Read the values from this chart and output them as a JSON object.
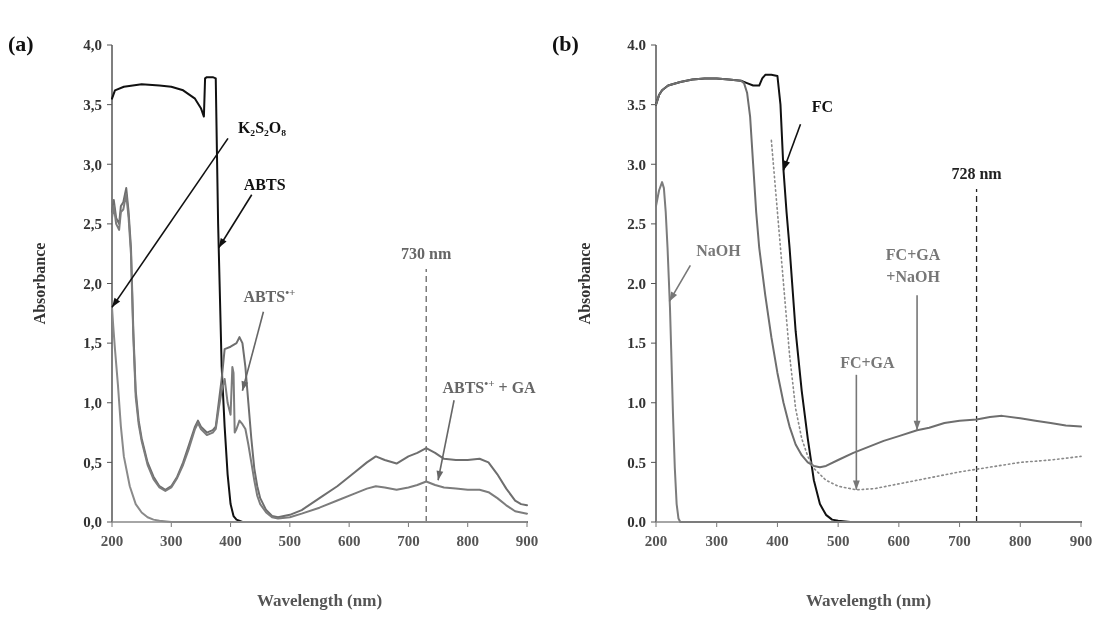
{
  "chart_data": [
    {
      "type": "line",
      "title": "(a)",
      "xlabel": "Wavelength (nm)",
      "ylabel": "Absorbance",
      "xlim": [
        200,
        900
      ],
      "xticks": [
        200,
        300,
        400,
        500,
        600,
        700,
        800,
        900
      ],
      "ylim": [
        0,
        4
      ],
      "yticks": [
        {
          "value": 0,
          "label": "0,0"
        },
        {
          "value": 0.5,
          "label": "0,5"
        },
        {
          "value": 1,
          "label": "1,0"
        },
        {
          "value": 1.5,
          "label": "1,5"
        },
        {
          "value": 2,
          "label": "2,0"
        },
        {
          "value": 2.5,
          "label": "2,5"
        },
        {
          "value": 3,
          "label": "3,0"
        },
        {
          "value": 3.5,
          "label": "3,5"
        },
        {
          "value": 4,
          "label": "4,0"
        }
      ],
      "series": [
        {
          "color": "#111111",
          "x": [
            200,
            205,
            220,
            250,
            280,
            300,
            320,
            340,
            350,
            355,
            357,
            360,
            370,
            375,
            377,
            379,
            380,
            385,
            390,
            395,
            400,
            405,
            410,
            420,
            500,
            900
          ],
          "values": [
            3.55,
            3.62,
            3.65,
            3.67,
            3.66,
            3.65,
            3.62,
            3.55,
            3.47,
            3.4,
            3.72,
            3.73,
            3.73,
            3.72,
            3.1,
            2.5,
            2.3,
            1.3,
            0.8,
            0.4,
            0.15,
            0.05,
            0.02,
            0,
            0,
            0
          ]
        },
        {
          "color": "#8a8a8a",
          "x": [
            200,
            202,
            205,
            210,
            215,
            220,
            230,
            240,
            250,
            260,
            270,
            280,
            300,
            400,
            500,
            900
          ],
          "values": [
            1.8,
            1.65,
            1.45,
            1.15,
            0.8,
            0.55,
            0.3,
            0.15,
            0.08,
            0.04,
            0.02,
            0.01,
            0,
            0,
            0,
            0
          ]
        },
        {
          "color": "#6e6e6e",
          "x": [
            200,
            203,
            207,
            212,
            215,
            219,
            224,
            228,
            232,
            236,
            240,
            245,
            250,
            260,
            270,
            280,
            290,
            300,
            310,
            320,
            330,
            340,
            345,
            350,
            360,
            370,
            375,
            380,
            385,
            390,
            400,
            410,
            415,
            420,
            425,
            430,
            435,
            440,
            445,
            450,
            460,
            470,
            480,
            500,
            520,
            550,
            580,
            610,
            630,
            645,
            660,
            680,
            700,
            715,
            730,
            745,
            760,
            780,
            800,
            820,
            835,
            850,
            865,
            880,
            890,
            900
          ],
          "values": [
            2.6,
            2.7,
            2.55,
            2.5,
            2.65,
            2.68,
            2.8,
            2.6,
            2.3,
            1.6,
            1.1,
            0.85,
            0.7,
            0.5,
            0.38,
            0.3,
            0.27,
            0.3,
            0.38,
            0.5,
            0.65,
            0.8,
            0.85,
            0.8,
            0.75,
            0.77,
            0.8,
            1.0,
            1.2,
            1.45,
            1.47,
            1.5,
            1.55,
            1.5,
            1.3,
            1.0,
            0.7,
            0.45,
            0.3,
            0.2,
            0.1,
            0.05,
            0.04,
            0.06,
            0.1,
            0.2,
            0.3,
            0.42,
            0.5,
            0.55,
            0.52,
            0.49,
            0.55,
            0.58,
            0.62,
            0.58,
            0.53,
            0.52,
            0.52,
            0.53,
            0.5,
            0.4,
            0.28,
            0.18,
            0.15,
            0.14
          ]
        },
        {
          "color": "#7c7c7c",
          "x": [
            200,
            203,
            207,
            212,
            215,
            219,
            224,
            228,
            232,
            236,
            240,
            245,
            250,
            260,
            270,
            280,
            290,
            300,
            310,
            320,
            330,
            340,
            345,
            350,
            360,
            370,
            375,
            380,
            385,
            390,
            395,
            400,
            403,
            405,
            407,
            410,
            415,
            420,
            425,
            430,
            435,
            440,
            445,
            450,
            460,
            470,
            480,
            500,
            520,
            550,
            580,
            610,
            630,
            645,
            660,
            680,
            700,
            715,
            730,
            745,
            760,
            780,
            800,
            820,
            835,
            850,
            865,
            880,
            890,
            900
          ],
          "values": [
            2.55,
            2.65,
            2.5,
            2.45,
            2.6,
            2.62,
            2.75,
            2.55,
            2.25,
            1.55,
            1.05,
            0.82,
            0.68,
            0.48,
            0.36,
            0.29,
            0.26,
            0.29,
            0.37,
            0.48,
            0.62,
            0.78,
            0.83,
            0.78,
            0.73,
            0.75,
            0.78,
            0.95,
            1.1,
            1.2,
            1.0,
            0.9,
            1.3,
            1.25,
            0.75,
            0.78,
            0.85,
            0.82,
            0.78,
            0.65,
            0.5,
            0.35,
            0.22,
            0.15,
            0.08,
            0.04,
            0.03,
            0.04,
            0.07,
            0.12,
            0.18,
            0.24,
            0.28,
            0.3,
            0.29,
            0.27,
            0.29,
            0.31,
            0.34,
            0.31,
            0.29,
            0.28,
            0.27,
            0.27,
            0.25,
            0.2,
            0.14,
            0.09,
            0.08,
            0.07
          ]
        }
      ],
      "ref_lines": [
        {
          "axis": "x",
          "value": 730,
          "label": "730 nm",
          "color": "#666666",
          "line_style": "dashed"
        }
      ],
      "annotations": [
        {
          "text": "K₂S₂O₈",
          "x": 200,
          "y": 1.8
        },
        {
          "text": "ABTS",
          "x": 380,
          "y": 2.3
        },
        {
          "text": "ABTS$^{•+}$",
          "x": 420,
          "y": 1.1
        },
        {
          "text": "ABTS$^{•+}$ + GA",
          "x": 750,
          "y": 0.35
        }
      ]
    },
    {
      "type": "line",
      "title": "(b)",
      "xlabel": "Wavelength (nm)",
      "ylabel": "Absorbance",
      "xlim": [
        200,
        900
      ],
      "xticks": [
        200,
        300,
        400,
        500,
        600,
        700,
        800,
        900
      ],
      "ylim": [
        0,
        4
      ],
      "yticks": [
        {
          "value": 0,
          "label": "0.0"
        },
        {
          "value": 0.5,
          "label": "0.5"
        },
        {
          "value": 1,
          "label": "1.0"
        },
        {
          "value": 1.5,
          "label": "1.5"
        },
        {
          "value": 2,
          "label": "2.0"
        },
        {
          "value": 2.5,
          "label": "2.5"
        },
        {
          "value": 3,
          "label": "3.0"
        },
        {
          "value": 3.5,
          "label": "3.5"
        },
        {
          "value": 4,
          "label": "4.0"
        }
      ],
      "series": [
        {
          "color": "#111111",
          "x": [
            200,
            205,
            210,
            220,
            240,
            260,
            280,
            300,
            320,
            340,
            350,
            360,
            370,
            375,
            380,
            390,
            400,
            405,
            410,
            415,
            420,
            430,
            440,
            450,
            460,
            470,
            480,
            490,
            500,
            520,
            600,
            700,
            800,
            900
          ],
          "values": [
            3.5,
            3.58,
            3.62,
            3.66,
            3.69,
            3.71,
            3.72,
            3.72,
            3.71,
            3.7,
            3.68,
            3.66,
            3.66,
            3.72,
            3.75,
            3.75,
            3.74,
            3.5,
            2.95,
            2.6,
            2.3,
            1.6,
            1.1,
            0.7,
            0.35,
            0.15,
            0.06,
            0.02,
            0.01,
            0,
            0,
            0,
            0,
            0
          ]
        },
        {
          "color": "#6e6e6e",
          "x": [
            200,
            205,
            210,
            220,
            240,
            260,
            280,
            300,
            320,
            340,
            345,
            350,
            355,
            360,
            365,
            370,
            380,
            390,
            400,
            410,
            420,
            430,
            440,
            450,
            460,
            470,
            480,
            500,
            525,
            550,
            575,
            600,
            630,
            650,
            675,
            700,
            728,
            750,
            770,
            800,
            825,
            850,
            875,
            900
          ],
          "values": [
            3.5,
            3.58,
            3.62,
            3.66,
            3.69,
            3.71,
            3.72,
            3.72,
            3.71,
            3.7,
            3.68,
            3.6,
            3.4,
            3.0,
            2.6,
            2.3,
            1.9,
            1.55,
            1.25,
            1.0,
            0.8,
            0.65,
            0.56,
            0.5,
            0.47,
            0.46,
            0.47,
            0.52,
            0.58,
            0.63,
            0.68,
            0.72,
            0.77,
            0.79,
            0.83,
            0.85,
            0.86,
            0.88,
            0.89,
            0.87,
            0.85,
            0.83,
            0.81,
            0.8
          ]
        },
        {
          "color": "#8a8a8a",
          "line_style": "dotted",
          "x": [
            390,
            400,
            410,
            420,
            430,
            440,
            450,
            460,
            480,
            500,
            530,
            560,
            600,
            650,
            700,
            750,
            800,
            850,
            900
          ],
          "values": [
            3.2,
            2.6,
            2.0,
            1.4,
            0.95,
            0.7,
            0.55,
            0.45,
            0.35,
            0.3,
            0.27,
            0.28,
            0.32,
            0.37,
            0.42,
            0.46,
            0.5,
            0.52,
            0.55
          ]
        },
        {
          "color": "#7c7c7c",
          "x": [
            200,
            205,
            210,
            213,
            216,
            219,
            221,
            223,
            225,
            228,
            231,
            234,
            237,
            240,
            260,
            300,
            400,
            500,
            600,
            700,
            800,
            900
          ],
          "values": [
            2.65,
            2.78,
            2.85,
            2.8,
            2.6,
            2.3,
            2.05,
            1.8,
            1.45,
            0.9,
            0.45,
            0.15,
            0.03,
            0,
            0,
            0,
            0,
            0,
            0,
            0,
            0,
            0
          ]
        }
      ],
      "ref_lines": [
        {
          "axis": "x",
          "value": 728,
          "label": "728 nm",
          "color": "#222222",
          "line_style": "dashed"
        }
      ],
      "annotations": [
        {
          "text": "FC",
          "x": 410,
          "y": 2.95
        },
        {
          "text": "NaOH",
          "x": 222,
          "y": 1.85
        },
        {
          "text": "FC+GA",
          "x": 530,
          "y": 0.27
        },
        {
          "text": "FC+GA\n+NaOH",
          "x": 630,
          "y": 0.77
        }
      ]
    }
  ]
}
